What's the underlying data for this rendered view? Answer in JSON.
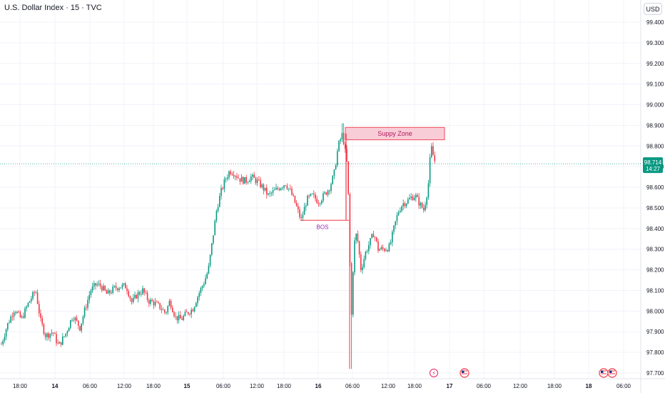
{
  "header": {
    "title": "U.S. Dollar Index · 15 · TVC",
    "currency": "USD"
  },
  "price_tag": {
    "price": "98.714",
    "countdown": "14:27",
    "color": "#089981"
  },
  "annotations": {
    "supply_zone": "Suppy Zone",
    "bos": "BOS"
  },
  "colors": {
    "up": "#089981",
    "down": "#f23645",
    "zone_fill": "#f8c8d4",
    "zone_border": "#f23645",
    "bos": "#9c27b0",
    "grid": "#f0f3fa",
    "axis_text": "#131722"
  },
  "events": [
    {
      "label": "lightning-event-icon",
      "x_label": "18:00 (16)"
    },
    {
      "label": "us-flag-event-icon",
      "x_label": "17"
    },
    {
      "label": "us-flag-event-icon",
      "x_label": "18"
    },
    {
      "label": "us-flag-event-icon",
      "x_label": "18"
    }
  ],
  "chart_data": {
    "type": "candlestick",
    "title": "U.S. Dollar Index · 15 · TVC",
    "ylim": [
      97.7,
      99.45
    ],
    "y_ticks": [
      "99.400",
      "99.300",
      "99.200",
      "99.100",
      "99.000",
      "98.900",
      "98.800",
      "98.700",
      "98.600",
      "98.500",
      "98.400",
      "98.300",
      "98.200",
      "98.100",
      "98.000",
      "97.900",
      "97.800",
      "97.700"
    ],
    "x_ticks": [
      "18:00",
      "14",
      "06:00",
      "12:00",
      "18:00",
      "15",
      "06:00",
      "12:00",
      "18:00",
      "16",
      "06:00",
      "12:00",
      "18:00",
      "17",
      "06:00",
      "12:00",
      "18:00",
      "18",
      "06:00"
    ],
    "bold_x_ticks": [
      "14",
      "15",
      "16",
      "17",
      "18"
    ],
    "last_price": 98.714,
    "supply_zone": {
      "from": 98.83,
      "to": 98.89,
      "label": "Suppy Zone"
    },
    "bos_level": 98.44,
    "path_points": [
      [
        0,
        97.84
      ],
      [
        8,
        97.93
      ],
      [
        18,
        98.01
      ],
      [
        28,
        97.96
      ],
      [
        38,
        98.04
      ],
      [
        48,
        98.1
      ],
      [
        55,
        97.95
      ],
      [
        62,
        97.88
      ],
      [
        72,
        97.9
      ],
      [
        80,
        97.83
      ],
      [
        90,
        97.89
      ],
      [
        100,
        97.98
      ],
      [
        110,
        97.92
      ],
      [
        118,
        98.02
      ],
      [
        125,
        98.1
      ],
      [
        133,
        98.13
      ],
      [
        140,
        98.12
      ],
      [
        148,
        98.08
      ],
      [
        158,
        98.11
      ],
      [
        166,
        98.12
      ],
      [
        175,
        98.12
      ],
      [
        183,
        98.04
      ],
      [
        190,
        98.08
      ],
      [
        198,
        98.1
      ],
      [
        206,
        98.05
      ],
      [
        214,
        98.04
      ],
      [
        222,
        98.02
      ],
      [
        230,
        97.99
      ],
      [
        236,
        98.05
      ],
      [
        244,
        97.97
      ],
      [
        252,
        97.96
      ],
      [
        260,
        97.99
      ],
      [
        268,
        98.01
      ],
      [
        276,
        98.08
      ],
      [
        284,
        98.14
      ],
      [
        290,
        98.2
      ],
      [
        296,
        98.35
      ],
      [
        302,
        98.5
      ],
      [
        308,
        98.58
      ],
      [
        314,
        98.64
      ],
      [
        320,
        98.68
      ],
      [
        326,
        98.67
      ],
      [
        334,
        98.64
      ],
      [
        342,
        98.63
      ],
      [
        350,
        98.65
      ],
      [
        358,
        98.63
      ],
      [
        366,
        98.6
      ],
      [
        374,
        98.56
      ],
      [
        382,
        98.58
      ],
      [
        390,
        98.6
      ],
      [
        398,
        98.62
      ],
      [
        405,
        98.58
      ],
      [
        412,
        98.52
      ],
      [
        420,
        98.44
      ],
      [
        428,
        98.54
      ],
      [
        436,
        98.56
      ],
      [
        444,
        98.53
      ],
      [
        452,
        98.56
      ],
      [
        460,
        98.6
      ],
      [
        466,
        98.66
      ],
      [
        472,
        98.8
      ],
      [
        478,
        98.86
      ],
      [
        484,
        98.72
      ],
      [
        487,
        98.5
      ],
      [
        490,
        97.92
      ],
      [
        494,
        98.32
      ],
      [
        498,
        98.38
      ],
      [
        504,
        98.2
      ],
      [
        510,
        98.28
      ],
      [
        516,
        98.33
      ],
      [
        522,
        98.38
      ],
      [
        528,
        98.3
      ],
      [
        536,
        98.3
      ],
      [
        544,
        98.31
      ],
      [
        550,
        98.4
      ],
      [
        556,
        98.48
      ],
      [
        562,
        98.52
      ],
      [
        568,
        98.53
      ],
      [
        574,
        98.55
      ],
      [
        580,
        98.56
      ],
      [
        586,
        98.52
      ],
      [
        592,
        98.49
      ],
      [
        598,
        98.6
      ],
      [
        602,
        98.8
      ],
      [
        606,
        98.74
      ],
      [
        609,
        98.71
      ]
    ]
  }
}
